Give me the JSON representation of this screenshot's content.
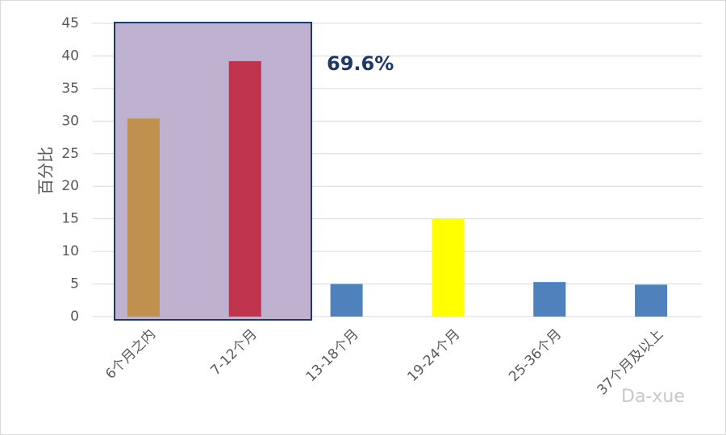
{
  "chart_data": {
    "type": "bar",
    "ylabel": "百分比",
    "annotation": "69.6%",
    "watermark": "Da-xue",
    "categories": [
      "6个月之内",
      "7-12个月",
      "13-18个月",
      "19-24个月",
      "25-36个月",
      "37个月及以上"
    ],
    "values": [
      30.4,
      39.2,
      5.0,
      15.0,
      5.3,
      4.9
    ],
    "colors": [
      "#c0914e",
      "#c0334d",
      "#4f81bd",
      "#ffff00",
      "#4f81bd",
      "#4f81bd"
    ],
    "ylim": [
      0,
      45
    ],
    "yticks": [
      0,
      5,
      10,
      15,
      20,
      25,
      30,
      35,
      40,
      45
    ],
    "grid": true
  }
}
